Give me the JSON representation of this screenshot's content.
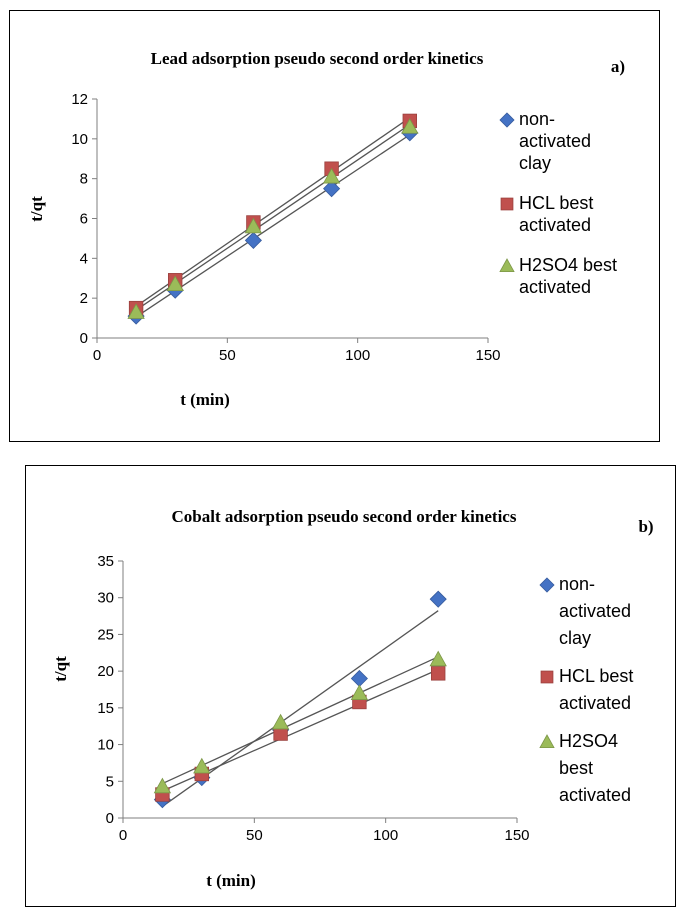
{
  "chart_data": [
    {
      "type": "scatter",
      "title": "Lead adsorption pseudo second order kinetics",
      "panel_label": "a)",
      "xlabel": "t (min)",
      "ylabel": "t/qt",
      "xlim": [
        0,
        150
      ],
      "ylim": [
        0,
        12
      ],
      "xticks": [
        0,
        50,
        100,
        150
      ],
      "yticks": [
        0,
        2,
        4,
        6,
        8,
        10,
        12
      ],
      "grid": false,
      "legend_position": "right",
      "x": [
        15,
        30,
        60,
        90,
        120
      ],
      "series": [
        {
          "name": "non-activated clay",
          "legend_lines": [
            "non-",
            "activated",
            "clay"
          ],
          "marker": "diamond",
          "color": "#4472C4",
          "values": [
            1.1,
            2.4,
            4.9,
            7.5,
            10.3
          ]
        },
        {
          "name": "HCL best activated",
          "legend_lines": [
            "HCL best",
            "activated"
          ],
          "marker": "square",
          "color": "#C0504D",
          "values": [
            1.5,
            2.9,
            5.8,
            8.5,
            10.9
          ]
        },
        {
          "name": "H2SO4 best activated",
          "legend_lines": [
            "H2SO4 best",
            "activated"
          ],
          "marker": "triangle",
          "color": "#9BBB59",
          "values": [
            1.3,
            2.7,
            5.6,
            8.1,
            10.6
          ]
        }
      ]
    },
    {
      "type": "scatter",
      "title": "Cobalt adsorption pseudo second order kinetics",
      "panel_label": "b)",
      "xlabel": "t (min)",
      "ylabel": "t/qt",
      "xlim": [
        0,
        150
      ],
      "ylim": [
        0,
        35
      ],
      "xticks": [
        0,
        50,
        100,
        150
      ],
      "yticks": [
        0,
        5,
        10,
        15,
        20,
        25,
        30,
        35
      ],
      "grid": false,
      "legend_position": "right",
      "x": [
        15,
        30,
        60,
        90,
        120
      ],
      "series": [
        {
          "name": "non-activated clay",
          "legend_lines": [
            "non-",
            "activated",
            "clay"
          ],
          "marker": "diamond",
          "color": "#4472C4",
          "values": [
            2.5,
            5.5,
            12,
            19,
            29.8
          ]
        },
        {
          "name": "HCL best activated",
          "legend_lines": [
            "HCL best",
            "activated"
          ],
          "marker": "square",
          "color": "#C0504D",
          "values": [
            3.2,
            6,
            11.5,
            15.8,
            19.7
          ]
        },
        {
          "name": "H2SO4 best activated",
          "legend_lines": [
            "H2SO4",
            "best",
            "activated"
          ],
          "marker": "triangle",
          "color": "#9BBB59",
          "values": [
            4.3,
            7,
            13,
            17,
            21.6
          ]
        }
      ]
    }
  ]
}
